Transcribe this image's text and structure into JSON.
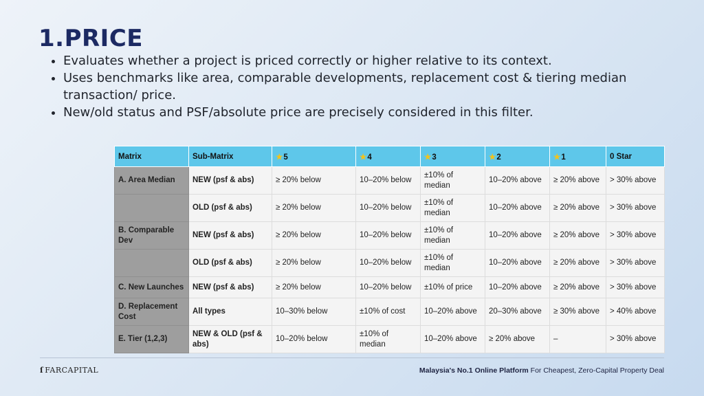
{
  "title": "1.PRICE",
  "bullets": [
    "Evaluates whether a project is priced correctly or higher relative to its context.",
    "Uses benchmarks like area, comparable developments, replacement cost & tiering median transaction/ price.",
    "New/old status and PSF/absolute price are precisely considered in this filter."
  ],
  "table": {
    "headers": [
      "Matrix",
      "Sub-Matrix",
      "5",
      "4",
      "3",
      "2",
      "1",
      "0 Star"
    ],
    "star_icon": "star-icon",
    "star_color": "#f2c21b",
    "header_color": "#5ec7ea",
    "rows": [
      {
        "matrix": "A. Area Median",
        "sub": "NEW (psf & abs)",
        "s5": "≥ 20% below",
        "s4": "10–20% below",
        "s3": "±10% of median",
        "s2": "10–20% above",
        "s1": "≥ 20% above",
        "s0": "> 30% above"
      },
      {
        "matrix": "",
        "sub": "OLD (psf & abs)",
        "s5": "≥ 20% below",
        "s4": "10–20% below",
        "s3": "±10% of median",
        "s2": "10–20% above",
        "s1": "≥ 20% above",
        "s0": "> 30% above"
      },
      {
        "matrix": "B. Comparable Dev",
        "sub": "NEW (psf & abs)",
        "s5": "≥ 20% below",
        "s4": "10–20% below",
        "s3": "±10% of median",
        "s2": "10–20% above",
        "s1": "≥ 20% above",
        "s0": "> 30% above"
      },
      {
        "matrix": "",
        "sub": "OLD (psf & abs)",
        "s5": "≥ 20% below",
        "s4": "10–20% below",
        "s3": "±10% of median",
        "s2": "10–20% above",
        "s1": "≥ 20% above",
        "s0": "> 30% above"
      },
      {
        "matrix": "C. New Launches",
        "sub": "NEW (psf & abs)",
        "s5": "≥ 20% below",
        "s4": "10–20% below",
        "s3": "±10% of price",
        "s2": "10–20% above",
        "s1": "≥ 20% above",
        "s0": "> 30% above"
      },
      {
        "matrix": "D. Replacement Cost",
        "sub": "All types",
        "s5": "10–30% below",
        "s4": "±10% of cost",
        "s3": "10–20% above",
        "s2": "20–30% above",
        "s1": "≥ 30% above",
        "s0": "> 40% above"
      },
      {
        "matrix": "E. Tier (1,2,3)",
        "sub": "NEW & OLD (psf & abs)",
        "s5": "10–20% below",
        "s4": "±10% of median",
        "s3": "10–20% above",
        "s2": "≥ 20% above",
        "s1": "–",
        "s0": "> 30% above"
      }
    ]
  },
  "footer": {
    "logo_text": "FARCAPITAL",
    "tagline_bold": "Malaysia's No.1 Online Platform",
    "tagline_rest": " For Cheapest, Zero-Capital Property Deal"
  }
}
